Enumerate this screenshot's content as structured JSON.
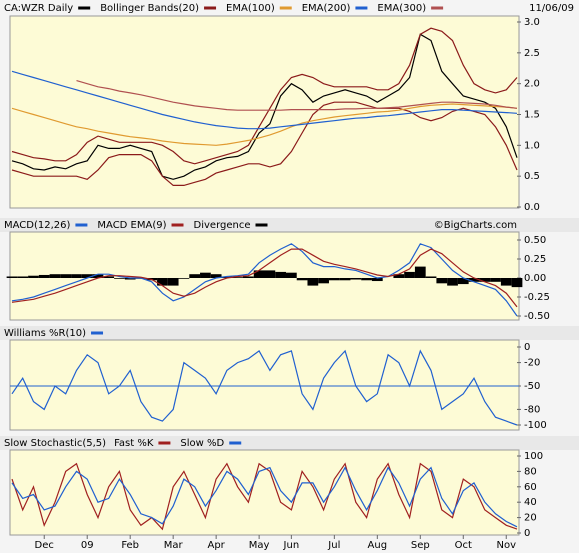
{
  "chart_data": [
    {
      "type": "line",
      "date": "11/06/09",
      "ylim": [
        0,
        3
      ],
      "yticks": [
        {
          "value": 3,
          "label": "3.0"
        },
        2.5,
        {
          "value": 2,
          "label": "2.0"
        },
        1.5,
        {
          "value": 1,
          "label": "1.0"
        },
        0.5,
        {
          "value": 0,
          "label": "0.0"
        }
      ],
      "series": [
        {
          "name": "CA:WZR Daily",
          "color": "#000000",
          "values": [
            0.75,
            0.7,
            0.62,
            0.6,
            0.65,
            0.62,
            0.7,
            0.75,
            1.0,
            0.95,
            0.95,
            1.0,
            0.95,
            0.9,
            0.5,
            0.45,
            0.5,
            0.6,
            0.65,
            0.75,
            0.8,
            0.82,
            0.9,
            1.2,
            1.35,
            1.8,
            2.0,
            1.9,
            1.7,
            1.8,
            1.85,
            1.9,
            1.85,
            1.8,
            1.7,
            1.8,
            1.9,
            2.1,
            2.8,
            2.7,
            2.2,
            2.0,
            1.8,
            1.75,
            1.7,
            1.6,
            1.3,
            0.8
          ]
        },
        {
          "name": "Bollinger Bands(20)",
          "color": "#8b1a1a",
          "values": [
            0.9,
            0.85,
            0.8,
            0.78,
            0.75,
            0.75,
            0.85,
            1.05,
            1.15,
            1.1,
            1.05,
            1.05,
            1.05,
            1.05,
            1.0,
            0.9,
            0.75,
            0.7,
            0.75,
            0.8,
            0.85,
            0.9,
            1.0,
            1.3,
            1.6,
            1.9,
            2.1,
            2.15,
            2.1,
            2.0,
            1.95,
            1.95,
            1.95,
            1.95,
            1.9,
            1.9,
            2.0,
            2.3,
            2.8,
            2.9,
            2.85,
            2.7,
            2.3,
            2.0,
            1.9,
            1.85,
            1.9,
            2.1
          ],
          "lower": [
            0.6,
            0.55,
            0.5,
            0.5,
            0.5,
            0.5,
            0.5,
            0.45,
            0.6,
            0.8,
            0.85,
            0.85,
            0.85,
            0.75,
            0.5,
            0.35,
            0.35,
            0.4,
            0.45,
            0.55,
            0.6,
            0.65,
            0.7,
            0.7,
            0.65,
            0.7,
            0.9,
            1.2,
            1.5,
            1.65,
            1.7,
            1.7,
            1.7,
            1.65,
            1.6,
            1.6,
            1.6,
            1.55,
            1.45,
            1.4,
            1.45,
            1.55,
            1.6,
            1.55,
            1.5,
            1.3,
            1.0,
            0.6
          ]
        },
        {
          "name": "EMA(100)",
          "color": "#e09a30",
          "values": [
            1.6,
            1.55,
            1.5,
            1.45,
            1.4,
            1.35,
            1.3,
            1.27,
            1.23,
            1.2,
            1.17,
            1.14,
            1.12,
            1.1,
            1.07,
            1.05,
            1.03,
            1.02,
            1.01,
            1.0,
            1.02,
            1.05,
            1.08,
            1.12,
            1.17,
            1.23,
            1.3,
            1.36,
            1.4,
            1.43,
            1.46,
            1.48,
            1.5,
            1.52,
            1.54,
            1.55,
            1.57,
            1.6,
            1.63,
            1.65,
            1.66,
            1.67,
            1.66,
            1.65,
            1.64,
            1.63,
            1.62,
            1.6
          ]
        },
        {
          "name": "EMA(200)",
          "color": "#2060d0",
          "values": [
            2.2,
            2.15,
            2.1,
            2.05,
            2.0,
            1.95,
            1.9,
            1.85,
            1.8,
            1.75,
            1.7,
            1.65,
            1.6,
            1.55,
            1.5,
            1.46,
            1.42,
            1.38,
            1.35,
            1.32,
            1.3,
            1.28,
            1.27,
            1.27,
            1.28,
            1.3,
            1.32,
            1.34,
            1.36,
            1.38,
            1.4,
            1.42,
            1.44,
            1.45,
            1.47,
            1.48,
            1.5,
            1.52,
            1.54,
            1.56,
            1.58,
            1.58,
            1.57,
            1.56,
            1.55,
            1.54,
            1.53,
            1.52
          ]
        },
        {
          "name": "EMA(300)",
          "color": "#b05050",
          "values": [
            null,
            null,
            null,
            null,
            null,
            null,
            2.05,
            2.0,
            1.95,
            1.92,
            1.88,
            1.85,
            1.82,
            1.78,
            1.74,
            1.7,
            1.67,
            1.64,
            1.62,
            1.6,
            1.58,
            1.57,
            1.57,
            1.57,
            1.57,
            1.57,
            1.58,
            1.58,
            1.58,
            1.58,
            1.58,
            1.59,
            1.59,
            1.6,
            1.6,
            1.61,
            1.62,
            1.64,
            1.66,
            1.68,
            1.7,
            1.7,
            1.69,
            1.68,
            1.67,
            1.65,
            1.62,
            1.6
          ]
        }
      ]
    },
    {
      "type": "line",
      "annotation": "©BigCharts.com",
      "ylim": [
        -0.5,
        0.5
      ],
      "yticks": [
        {
          "value": 0.5,
          "label": "0.50"
        },
        0.25,
        {
          "value": 0,
          "label": "0.00"
        },
        -0.25,
        {
          "value": -0.5,
          "label": "-0.50"
        }
      ],
      "series": [
        {
          "name": "MACD(12,26)",
          "color": "#2060d0",
          "values": [
            -0.3,
            -0.28,
            -0.25,
            -0.2,
            -0.15,
            -0.1,
            -0.05,
            0.0,
            0.05,
            0.05,
            0.02,
            0.0,
            0.0,
            -0.05,
            -0.2,
            -0.3,
            -0.25,
            -0.15,
            -0.05,
            0.0,
            0.02,
            0.03,
            0.05,
            0.2,
            0.3,
            0.38,
            0.45,
            0.35,
            0.2,
            0.15,
            0.15,
            0.12,
            0.1,
            0.05,
            0.0,
            0.02,
            0.1,
            0.2,
            0.45,
            0.4,
            0.25,
            0.1,
            0.0,
            -0.05,
            -0.1,
            -0.15,
            -0.3,
            -0.5
          ]
        },
        {
          "name": "MACD EMA(9)",
          "color": "#a02020",
          "values": [
            -0.32,
            -0.3,
            -0.28,
            -0.24,
            -0.2,
            -0.15,
            -0.1,
            -0.05,
            0.0,
            0.03,
            0.03,
            0.02,
            0.01,
            -0.02,
            -0.1,
            -0.2,
            -0.24,
            -0.2,
            -0.12,
            -0.05,
            0.0,
            0.02,
            0.03,
            0.1,
            0.2,
            0.3,
            0.38,
            0.38,
            0.3,
            0.22,
            0.18,
            0.15,
            0.12,
            0.08,
            0.04,
            0.02,
            0.05,
            0.12,
            0.3,
            0.38,
            0.32,
            0.2,
            0.08,
            0.0,
            -0.05,
            -0.1,
            -0.2,
            -0.38
          ]
        },
        {
          "name": "Divergence",
          "color": "#000000",
          "kind": "bar",
          "values": [
            0.02,
            0.02,
            0.03,
            0.04,
            0.05,
            0.05,
            0.05,
            0.05,
            0.05,
            0.02,
            -0.01,
            -0.02,
            -0.01,
            -0.03,
            -0.1,
            -0.1,
            -0.01,
            0.05,
            0.07,
            0.05,
            0.02,
            0.01,
            0.02,
            0.1,
            0.1,
            0.08,
            0.07,
            -0.03,
            -0.1,
            -0.07,
            -0.03,
            -0.03,
            -0.02,
            -0.03,
            -0.04,
            0.0,
            0.05,
            0.08,
            0.15,
            0.02,
            -0.07,
            -0.1,
            -0.08,
            -0.05,
            -0.05,
            -0.05,
            -0.1,
            -0.12
          ]
        }
      ]
    },
    {
      "type": "line",
      "ylim": [
        -100,
        0
      ],
      "yticks": [
        0,
        -20,
        -50,
        -80,
        -100
      ],
      "reference_line": -50,
      "series": [
        {
          "name": "Williams %R(10)",
          "color": "#2060d0",
          "values": [
            -60,
            -40,
            -70,
            -80,
            -50,
            -60,
            -30,
            -10,
            -20,
            -60,
            -50,
            -30,
            -70,
            -90,
            -95,
            -80,
            -20,
            -30,
            -40,
            -60,
            -30,
            -20,
            -15,
            -5,
            -30,
            -10,
            -5,
            -60,
            -80,
            -40,
            -20,
            -5,
            -50,
            -70,
            -60,
            -10,
            -20,
            -50,
            -5,
            -30,
            -80,
            -70,
            -60,
            -40,
            -70,
            -90,
            -95,
            -100
          ]
        }
      ]
    },
    {
      "type": "line",
      "title": "Slow Stochastic(5,5)",
      "ylim": [
        0,
        100
      ],
      "yticks": [
        100,
        80,
        60,
        40,
        20,
        0
      ],
      "categories": [
        null,
        null,
        null,
        "Dec",
        null,
        null,
        null,
        "09",
        null,
        null,
        null,
        "Feb",
        null,
        null,
        null,
        "Mar",
        null,
        null,
        null,
        "Apr",
        null,
        null,
        null,
        "May",
        null,
        null,
        "Jun",
        null,
        null,
        null,
        "Jul",
        null,
        null,
        null,
        "Aug",
        null,
        null,
        null,
        "Sep",
        null,
        null,
        null,
        "Oct",
        null,
        null,
        null,
        "Nov",
        null
      ],
      "series": [
        {
          "name": "Fast %K",
          "color": "#a02020",
          "values": [
            70,
            30,
            60,
            10,
            40,
            80,
            90,
            50,
            20,
            60,
            80,
            30,
            10,
            20,
            5,
            60,
            80,
            50,
            20,
            70,
            90,
            60,
            40,
            90,
            80,
            40,
            30,
            80,
            60,
            30,
            70,
            90,
            40,
            20,
            70,
            90,
            50,
            20,
            90,
            80,
            30,
            20,
            70,
            60,
            30,
            20,
            10,
            5
          ]
        },
        {
          "name": "Slow %D",
          "color": "#2060d0",
          "values": [
            65,
            45,
            50,
            30,
            35,
            60,
            80,
            70,
            40,
            45,
            70,
            50,
            25,
            20,
            12,
            35,
            70,
            60,
            35,
            55,
            80,
            70,
            50,
            80,
            85,
            55,
            40,
            65,
            65,
            40,
            60,
            85,
            55,
            30,
            55,
            85,
            65,
            35,
            70,
            85,
            45,
            25,
            55,
            65,
            40,
            25,
            15,
            8
          ]
        }
      ]
    }
  ]
}
